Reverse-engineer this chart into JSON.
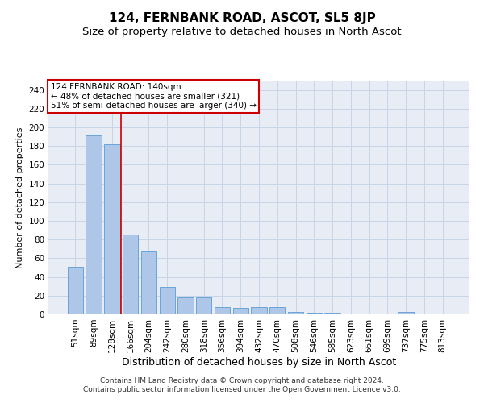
{
  "title": "124, FERNBANK ROAD, ASCOT, SL5 8JP",
  "subtitle": "Size of property relative to detached houses in North Ascot",
  "xlabel": "Distribution of detached houses by size in North Ascot",
  "ylabel": "Number of detached properties",
  "categories": [
    "51sqm",
    "89sqm",
    "128sqm",
    "166sqm",
    "204sqm",
    "242sqm",
    "280sqm",
    "318sqm",
    "356sqm",
    "394sqm",
    "432sqm",
    "470sqm",
    "508sqm",
    "546sqm",
    "585sqm",
    "623sqm",
    "661sqm",
    "699sqm",
    "737sqm",
    "775sqm",
    "813sqm"
  ],
  "bar_values": [
    51,
    191,
    182,
    85,
    67,
    29,
    18,
    18,
    8,
    7,
    8,
    8,
    3,
    2,
    2,
    1,
    1,
    0,
    3,
    1,
    1
  ],
  "bar_color": "#aec6e8",
  "bar_edge_color": "#5b9bd5",
  "grid_color": "#c8d4e8",
  "background_color": "#e8edf5",
  "vline_x": 2.5,
  "vline_color": "#cc0000",
  "annotation_box_text": "124 FERNBANK ROAD: 140sqm\n← 48% of detached houses are smaller (321)\n51% of semi-detached houses are larger (340) →",
  "annotation_box_color": "#cc0000",
  "ylim": [
    0,
    250
  ],
  "yticks": [
    0,
    20,
    40,
    60,
    80,
    100,
    120,
    140,
    160,
    180,
    200,
    220,
    240
  ],
  "footer_line1": "Contains HM Land Registry data © Crown copyright and database right 2024.",
  "footer_line2": "Contains public sector information licensed under the Open Government Licence v3.0.",
  "title_fontsize": 11,
  "subtitle_fontsize": 9.5,
  "xlabel_fontsize": 9,
  "ylabel_fontsize": 8,
  "tick_fontsize": 7.5,
  "footer_fontsize": 6.5,
  "ann_fontsize": 7.5
}
